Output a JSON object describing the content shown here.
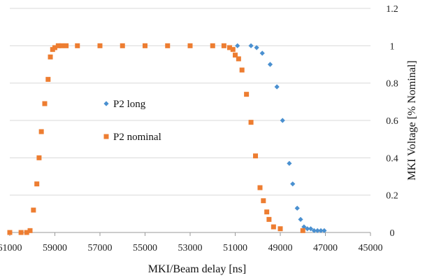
{
  "chart_data": {
    "type": "scatter",
    "xlabel": "MKI/Beam delay [ns]",
    "ylabel": "MKI Voltage [%  Nominal]",
    "xlim": [
      61000,
      45000
    ],
    "x_reversed": true,
    "ylim": [
      0,
      1.2
    ],
    "x_ticks": [
      "61000",
      "59000",
      "57000",
      "55000",
      "53000",
      "51000",
      "49000",
      "47000",
      "45000"
    ],
    "y_ticks": [
      "0",
      "0.2",
      "0.4",
      "0.6",
      "0.8",
      "1",
      "1.2"
    ],
    "y_axis_side": "right",
    "grid": true,
    "legend_placement": "center-left",
    "series": [
      {
        "name": "P2 long",
        "marker": "diamond",
        "color": "#4a90d0",
        "points": [
          [
            50900,
            1.0
          ],
          [
            50300,
            1.0
          ],
          [
            50050,
            0.99
          ],
          [
            49800,
            0.96
          ],
          [
            49450,
            0.9
          ],
          [
            49150,
            0.78
          ],
          [
            48900,
            0.6
          ],
          [
            48600,
            0.37
          ],
          [
            48450,
            0.26
          ],
          [
            48250,
            0.13
          ],
          [
            48100,
            0.07
          ],
          [
            47950,
            0.03
          ],
          [
            47800,
            0.02
          ],
          [
            47650,
            0.02
          ],
          [
            47500,
            0.01
          ],
          [
            47350,
            0.01
          ],
          [
            47200,
            0.01
          ],
          [
            47050,
            0.01
          ]
        ]
      },
      {
        "name": "P2 nominal",
        "marker": "square",
        "color": "#ed7d31",
        "points": [
          [
            61000,
            0.0
          ],
          [
            60500,
            0.0
          ],
          [
            60250,
            0.0
          ],
          [
            60100,
            0.01
          ],
          [
            59950,
            0.12
          ],
          [
            59800,
            0.26
          ],
          [
            59700,
            0.4
          ],
          [
            59600,
            0.54
          ],
          [
            59450,
            0.69
          ],
          [
            59300,
            0.82
          ],
          [
            59200,
            0.94
          ],
          [
            59100,
            0.98
          ],
          [
            59000,
            0.99
          ],
          [
            58850,
            1.0
          ],
          [
            58700,
            1.0
          ],
          [
            58500,
            1.0
          ],
          [
            58000,
            1.0
          ],
          [
            57000,
            1.0
          ],
          [
            56000,
            1.0
          ],
          [
            55000,
            1.0
          ],
          [
            54000,
            1.0
          ],
          [
            53000,
            1.0
          ],
          [
            52000,
            1.0
          ],
          [
            51500,
            1.0
          ],
          [
            51250,
            0.99
          ],
          [
            51100,
            0.98
          ],
          [
            51000,
            0.95
          ],
          [
            50850,
            0.93
          ],
          [
            50700,
            0.87
          ],
          [
            50500,
            0.74
          ],
          [
            50300,
            0.59
          ],
          [
            50100,
            0.41
          ],
          [
            49900,
            0.24
          ],
          [
            49750,
            0.17
          ],
          [
            49600,
            0.11
          ],
          [
            49500,
            0.07
          ],
          [
            49300,
            0.03
          ],
          [
            49000,
            0.02
          ],
          [
            48000,
            0.01
          ]
        ]
      }
    ]
  }
}
